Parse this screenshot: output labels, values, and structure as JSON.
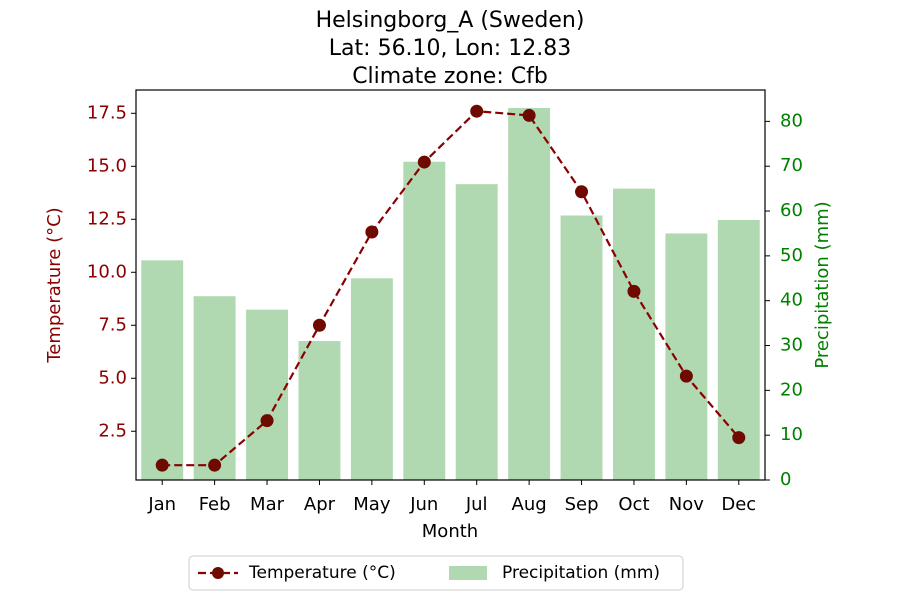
{
  "chart_data": {
    "type": "bar+line",
    "title": [
      "Helsingborg_A (Sweden)",
      "Lat: 56.10, Lon: 12.83",
      "Climate zone: Cfb"
    ],
    "xlabel": "Month",
    "categories": [
      "Jan",
      "Feb",
      "Mar",
      "Apr",
      "May",
      "Jun",
      "Jul",
      "Aug",
      "Sep",
      "Oct",
      "Nov",
      "Dec"
    ],
    "left_axis": {
      "label": "Temperature (°C)",
      "range": [
        0.2,
        18.6
      ],
      "ticks": [
        2.5,
        5.0,
        7.5,
        10.0,
        12.5,
        15.0,
        17.5
      ],
      "tick_labels": [
        "2.5",
        "5.0",
        "7.5",
        "10.0",
        "12.5",
        "15.0",
        "17.5"
      ],
      "color": "#8b0000"
    },
    "right_axis": {
      "label": "Precipitation (mm)",
      "range": [
        0,
        87
      ],
      "ticks": [
        0,
        10,
        20,
        30,
        40,
        50,
        60,
        70,
        80
      ],
      "tick_labels": [
        "0",
        "10",
        "20",
        "30",
        "40",
        "50",
        "60",
        "70",
        "80"
      ],
      "color": "#008000"
    },
    "series": [
      {
        "name": "Temperature (°C)",
        "type": "line",
        "axis": "left",
        "color": "#8b0000",
        "style": "dashed",
        "marker": "circle",
        "values": [
          0.9,
          0.9,
          3.0,
          7.5,
          11.9,
          15.2,
          17.6,
          17.4,
          13.8,
          9.1,
          5.1,
          2.2
        ]
      },
      {
        "name": "Precipitation (mm)",
        "type": "bar",
        "axis": "right",
        "color": "#b1d9b1",
        "values": [
          49,
          41,
          38,
          31,
          45,
          71,
          66,
          83,
          59,
          65,
          55,
          58
        ]
      }
    ],
    "legend": {
      "placement": "bottom-center",
      "columns": 2
    },
    "grid": false
  }
}
